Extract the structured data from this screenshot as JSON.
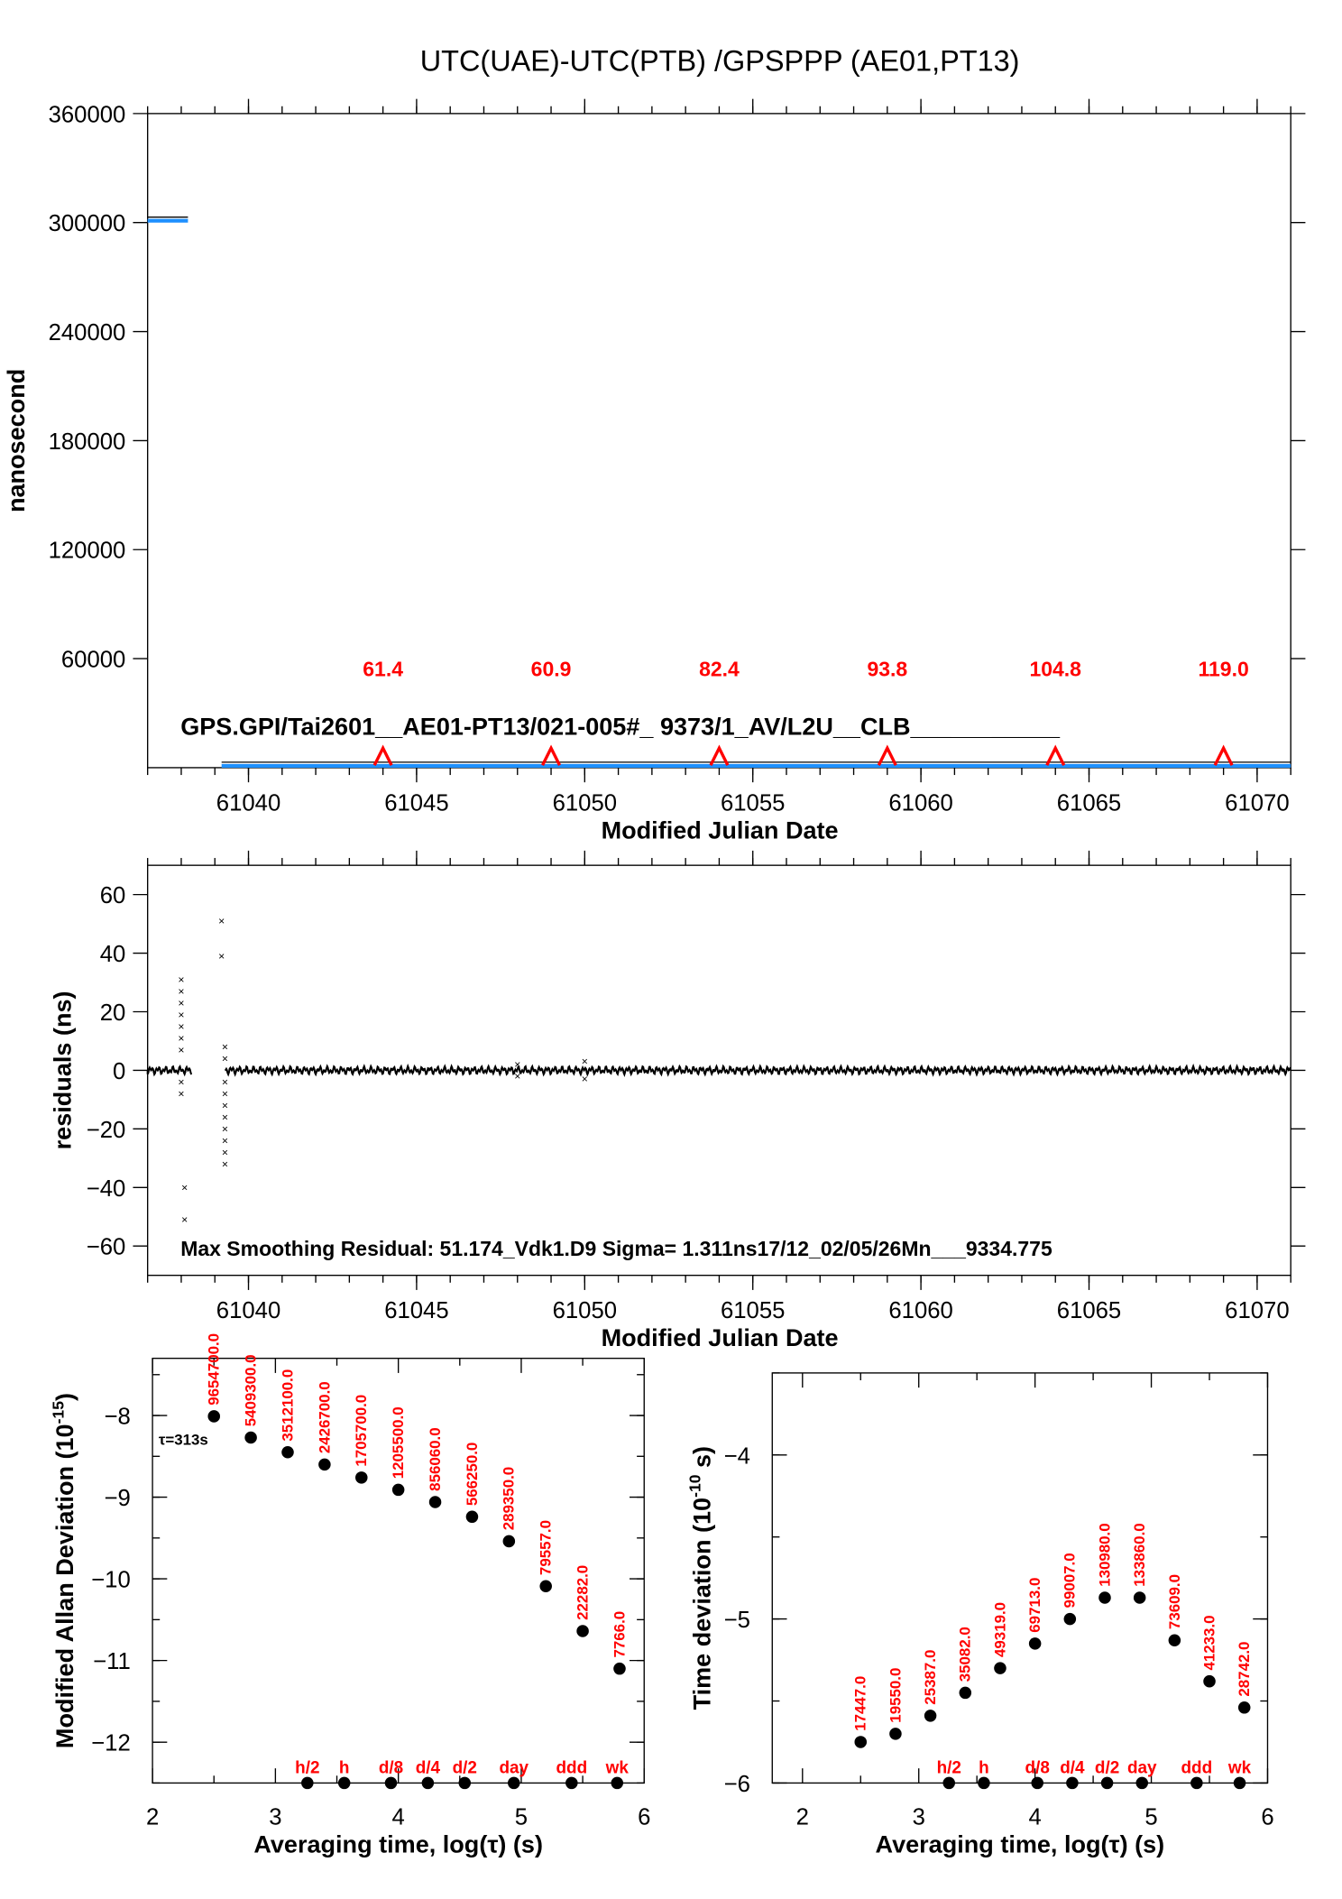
{
  "title": "UTC(UAE)-UTC(PTB)  /GPSPPP  (AE01,PT13)",
  "colors": {
    "series": "#1e90ff",
    "marker": "#ff0000",
    "text_red": "#ff0000"
  },
  "chart_data": [
    {
      "type": "line",
      "title": "UTC(UAE)-UTC(PTB)  /GPSPPP  (AE01,PT13)",
      "xlabel": "Modified Julian Date",
      "ylabel": "nanosecond",
      "xlim": [
        61037,
        61071
      ],
      "ylim": [
        0,
        360000
      ],
      "xticks": [
        61040,
        61045,
        61050,
        61055,
        61060,
        61065,
        61070
      ],
      "yticks": [
        60000,
        120000,
        180000,
        240000,
        300000,
        360000
      ],
      "series": [
        {
          "name": "segment-1",
          "x": [
            61037,
            61038.2
          ],
          "y": [
            301000,
            301000
          ]
        },
        {
          "name": "segment-2",
          "x": [
            61039.2,
            61071
          ],
          "y": [
            1000,
            1000
          ]
        }
      ],
      "markers": [
        {
          "x": 61044,
          "label": "61.4"
        },
        {
          "x": 61049,
          "label": "60.9"
        },
        {
          "x": 61054,
          "label": "82.4"
        },
        {
          "x": 61059,
          "label": "93.8"
        },
        {
          "x": 61064,
          "label": "104.8"
        },
        {
          "x": 61069,
          "label": "119.0"
        }
      ],
      "annotation": "GPS.GPI/Tai2601__AE01-PT13/021-005#_  9373/1_AV/L2U__CLB___________"
    },
    {
      "type": "scatter",
      "xlabel": "Modified Julian Date",
      "ylabel": "residuals (ns)",
      "xlim": [
        61037,
        61071
      ],
      "ylim": [
        -70,
        70
      ],
      "xticks": [
        61040,
        61045,
        61050,
        61055,
        61060,
        61065,
        61070
      ],
      "yticks": [
        -60,
        -40,
        -20,
        0,
        20,
        40,
        60
      ],
      "outliers": [
        {
          "x": 61038.0,
          "y": 31
        },
        {
          "x": 61038.0,
          "y": 27
        },
        {
          "x": 61038.0,
          "y": 23
        },
        {
          "x": 61038.0,
          "y": 19
        },
        {
          "x": 61038.0,
          "y": 15
        },
        {
          "x": 61038.0,
          "y": 11
        },
        {
          "x": 61038.0,
          "y": 7
        },
        {
          "x": 61038.0,
          "y": -4
        },
        {
          "x": 61038.0,
          "y": -8
        },
        {
          "x": 61038.1,
          "y": -40
        },
        {
          "x": 61038.1,
          "y": -51
        },
        {
          "x": 61039.2,
          "y": 51
        },
        {
          "x": 61039.2,
          "y": 39
        },
        {
          "x": 61039.3,
          "y": 8
        },
        {
          "x": 61039.3,
          "y": 4
        },
        {
          "x": 61039.3,
          "y": -4
        },
        {
          "x": 61039.3,
          "y": -8
        },
        {
          "x": 61039.3,
          "y": -12
        },
        {
          "x": 61039.3,
          "y": -16
        },
        {
          "x": 61039.3,
          "y": -20
        },
        {
          "x": 61039.3,
          "y": -24
        },
        {
          "x": 61039.3,
          "y": -28
        },
        {
          "x": 61039.3,
          "y": -32
        },
        {
          "x": 61048.0,
          "y": 2
        },
        {
          "x": 61048.0,
          "y": -2
        },
        {
          "x": 61050.0,
          "y": 3
        },
        {
          "x": 61050.0,
          "y": -3
        }
      ],
      "annotation": "Max Smoothing Residual: 51.174_Vdk1.D9  Sigma= 1.311ns17/12_02/05/26Mn___9334.775"
    },
    {
      "type": "scatter",
      "xlabel": "Averaging time, log(τ) (s)",
      "ylabel": "Modified Allan Deviation (10^-15)",
      "ylabel_main": "Modified Allan Deviation (10",
      "ylabel_exp": "-15",
      "ylabel_end": ")",
      "xlim": [
        2,
        6
      ],
      "ylim": [
        -12.5,
        -7.3
      ],
      "xticks": [
        2,
        3,
        4,
        5,
        6
      ],
      "yticks": [
        -12,
        -11,
        -10,
        -9,
        -8
      ],
      "x": [
        2.5,
        2.8,
        3.1,
        3.4,
        3.7,
        4.0,
        4.3,
        4.6,
        4.9,
        5.2,
        5.5,
        5.8
      ],
      "y": [
        -8.01,
        -8.27,
        -8.45,
        -8.6,
        -8.76,
        -8.91,
        -9.06,
        -9.24,
        -9.54,
        -10.09,
        -10.64,
        -11.1
      ],
      "point_labels": [
        "9654700.0",
        "5409300.0",
        "3512100.0",
        "2426700.0",
        "1705700.0",
        "1205500.0",
        "856060.0",
        "566250.0",
        "289350.0",
        "79557.0",
        "22282.0",
        "7766.0"
      ],
      "tau_note": "τ=313s",
      "time_marks": [
        {
          "x": 3.26,
          "label": "h/2"
        },
        {
          "x": 3.56,
          "label": "h"
        },
        {
          "x": 3.94,
          "label": "d/8"
        },
        {
          "x": 4.24,
          "label": "d/4"
        },
        {
          "x": 4.54,
          "label": "d/2"
        },
        {
          "x": 4.94,
          "label": "day"
        },
        {
          "x": 5.41,
          "label": "ddd"
        },
        {
          "x": 5.78,
          "label": "wk"
        }
      ]
    },
    {
      "type": "scatter",
      "xlabel": "Averaging time, log(τ) (s)",
      "ylabel": "Time deviation (10^-10 s)",
      "ylabel_main": "Time deviation (10",
      "ylabel_exp": "-10",
      "ylabel_end": " s)",
      "xlim": [
        1.74,
        6
      ],
      "ylim": [
        -6,
        -3.5
      ],
      "xticks": [
        2,
        3,
        4,
        5,
        6
      ],
      "yticks": [
        -6,
        -5,
        -4
      ],
      "x": [
        2.5,
        2.8,
        3.1,
        3.4,
        3.7,
        4.0,
        4.3,
        4.6,
        4.9,
        5.2,
        5.5,
        5.8
      ],
      "y": [
        -5.75,
        -5.7,
        -5.59,
        -5.45,
        -5.3,
        -5.15,
        -5.0,
        -4.87,
        -4.87,
        -5.13,
        -5.38,
        -5.54
      ],
      "point_labels": [
        "17447.0",
        "19550.0",
        "25387.0",
        "35082.0",
        "49319.0",
        "69713.0",
        "99007.0",
        "130980.0",
        "133860.0",
        "73609.0",
        "41233.0",
        "28742.0"
      ],
      "time_marks": [
        {
          "x": 3.26,
          "label": "h/2"
        },
        {
          "x": 3.56,
          "label": "h"
        },
        {
          "x": 4.02,
          "label": "d/8"
        },
        {
          "x": 4.32,
          "label": "d/4"
        },
        {
          "x": 4.62,
          "label": "d/2"
        },
        {
          "x": 4.92,
          "label": "day"
        },
        {
          "x": 5.39,
          "label": "ddd"
        },
        {
          "x": 5.76,
          "label": "wk"
        }
      ]
    }
  ]
}
